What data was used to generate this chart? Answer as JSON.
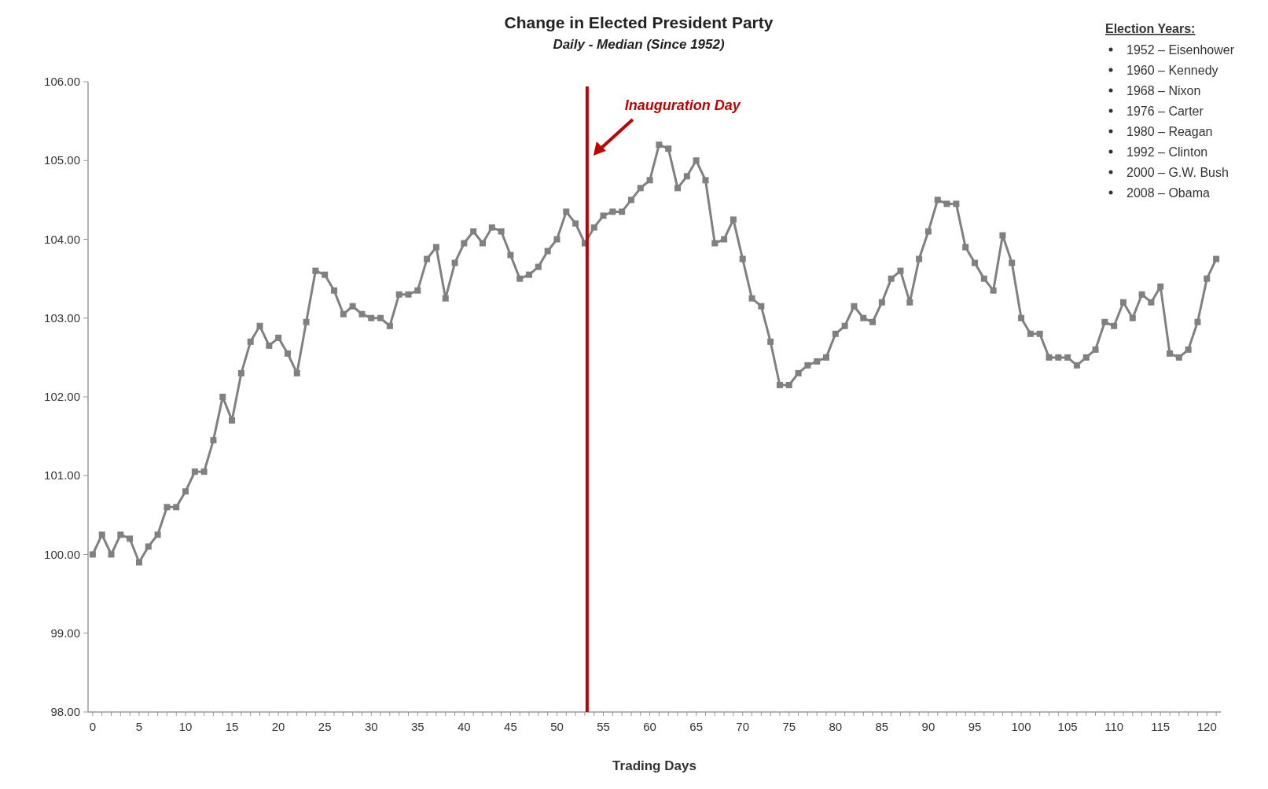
{
  "chart_data": {
    "type": "line",
    "title": "Change in Elected President Party",
    "subtitle": "Daily - Median  (Since 1952)",
    "xlabel": "Trading Days",
    "x": [
      0,
      1,
      2,
      3,
      4,
      5,
      6,
      7,
      8,
      9,
      10,
      11,
      12,
      13,
      14,
      15,
      16,
      17,
      18,
      19,
      20,
      21,
      22,
      23,
      24,
      25,
      26,
      27,
      28,
      29,
      30,
      31,
      32,
      33,
      34,
      35,
      36,
      37,
      38,
      39,
      40,
      41,
      42,
      43,
      44,
      45,
      46,
      47,
      48,
      49,
      50,
      51,
      52,
      53,
      54,
      55,
      56,
      57,
      58,
      59,
      60,
      61,
      62,
      63,
      64,
      65,
      66,
      67,
      68,
      69,
      70,
      71,
      72,
      73,
      74,
      75,
      76,
      77,
      78,
      79,
      80,
      81,
      82,
      83,
      84,
      85,
      86,
      87,
      88,
      89,
      90,
      91,
      92,
      93,
      94,
      95,
      96,
      97,
      98,
      99,
      100,
      101,
      102,
      103,
      104,
      105,
      106,
      107,
      108,
      109,
      110,
      111,
      112,
      113,
      114,
      115,
      116,
      117,
      118,
      119,
      120,
      121
    ],
    "series": [
      {
        "color": "#808080",
        "values": [
          100.0,
          100.25,
          100.0,
          100.25,
          100.2,
          99.9,
          100.1,
          100.25,
          100.6,
          100.6,
          100.8,
          101.05,
          101.05,
          101.45,
          102.0,
          101.7,
          102.3,
          102.7,
          102.9,
          102.65,
          102.75,
          102.55,
          102.3,
          102.95,
          103.6,
          103.55,
          103.35,
          103.05,
          103.15,
          103.05,
          103.0,
          103.0,
          102.9,
          103.3,
          103.3,
          103.35,
          103.75,
          103.9,
          103.25,
          103.7,
          103.95,
          104.1,
          103.95,
          104.15,
          104.1,
          103.8,
          103.5,
          103.55,
          103.65,
          103.85,
          104.0,
          104.35,
          104.2,
          103.95,
          104.15,
          104.3,
          104.35,
          104.35,
          104.5,
          104.65,
          104.75,
          105.2,
          105.15,
          104.65,
          104.8,
          105.0,
          104.75,
          103.95,
          104.0,
          104.25,
          103.75,
          103.25,
          103.15,
          102.7,
          102.15,
          102.15,
          102.3,
          102.4,
          102.45,
          102.5,
          102.8,
          102.9,
          103.15,
          103.0,
          102.95,
          103.2,
          103.5,
          103.6,
          103.2,
          103.75,
          104.1,
          104.5,
          104.45,
          104.45,
          103.9,
          103.7,
          103.5,
          103.35,
          104.05,
          103.7,
          103.0,
          102.8,
          102.8,
          102.5,
          102.5,
          102.5,
          102.4,
          102.5,
          102.6,
          102.95,
          102.9,
          103.2,
          103.0,
          103.3,
          103.2,
          103.4,
          102.55,
          102.5,
          102.6,
          102.95,
          103.5,
          103.75
        ]
      }
    ],
    "marker": "square",
    "line_style": "solid",
    "grid": false,
    "xlim": [
      -0.5,
      121.5
    ],
    "xticks": [
      0,
      {
        "value": 1,
        "label": null
      },
      {
        "value": 2,
        "label": null
      },
      {
        "value": 3,
        "label": null
      },
      {
        "value": 4,
        "label": null
      },
      5,
      {
        "value": 6,
        "label": null
      },
      {
        "value": 7,
        "label": null
      },
      {
        "value": 8,
        "label": null
      },
      {
        "value": 9,
        "label": null
      },
      10,
      {
        "value": 11,
        "label": null
      },
      {
        "value": 12,
        "label": null
      },
      {
        "value": 13,
        "label": null
      },
      {
        "value": 14,
        "label": null
      },
      15,
      {
        "value": 16,
        "label": null
      },
      {
        "value": 17,
        "label": null
      },
      {
        "value": 18,
        "label": null
      },
      {
        "value": 19,
        "label": null
      },
      20,
      {
        "value": 21,
        "label": null
      },
      {
        "value": 22,
        "label": null
      },
      {
        "value": 23,
        "label": null
      },
      {
        "value": 24,
        "label": null
      },
      25,
      {
        "value": 26,
        "label": null
      },
      {
        "value": 27,
        "label": null
      },
      {
        "value": 28,
        "label": null
      },
      {
        "value": 29,
        "label": null
      },
      30,
      {
        "value": 31,
        "label": null
      },
      {
        "value": 32,
        "label": null
      },
      {
        "value": 33,
        "label": null
      },
      {
        "value": 34,
        "label": null
      },
      35,
      {
        "value": 36,
        "label": null
      },
      {
        "value": 37,
        "label": null
      },
      {
        "value": 38,
        "label": null
      },
      {
        "value": 39,
        "label": null
      },
      40,
      {
        "value": 41,
        "label": null
      },
      {
        "value": 42,
        "label": null
      },
      {
        "value": 43,
        "label": null
      },
      {
        "value": 44,
        "label": null
      },
      45,
      {
        "value": 46,
        "label": null
      },
      {
        "value": 47,
        "label": null
      },
      {
        "value": 48,
        "label": null
      },
      {
        "value": 49,
        "label": null
      },
      50,
      {
        "value": 51,
        "label": null
      },
      {
        "value": 52,
        "label": null
      },
      {
        "value": 53,
        "label": null
      },
      {
        "value": 54,
        "label": null
      },
      55,
      {
        "value": 56,
        "label": null
      },
      {
        "value": 57,
        "label": null
      },
      {
        "value": 58,
        "label": null
      },
      {
        "value": 59,
        "label": null
      },
      60,
      {
        "value": 61,
        "label": null
      },
      {
        "value": 62,
        "label": null
      },
      {
        "value": 63,
        "label": null
      },
      {
        "value": 64,
        "label": null
      },
      65,
      {
        "value": 66,
        "label": null
      },
      {
        "value": 67,
        "label": null
      },
      {
        "value": 68,
        "label": null
      },
      {
        "value": 69,
        "label": null
      },
      70,
      {
        "value": 71,
        "label": null
      },
      {
        "value": 72,
        "label": null
      },
      {
        "value": 73,
        "label": null
      },
      {
        "value": 74,
        "label": null
      },
      75,
      {
        "value": 76,
        "label": null
      },
      {
        "value": 77,
        "label": null
      },
      {
        "value": 78,
        "label": null
      },
      {
        "value": 79,
        "label": null
      },
      80,
      {
        "value": 81,
        "label": null
      },
      {
        "value": 82,
        "label": null
      },
      {
        "value": 83,
        "label": null
      },
      {
        "value": 84,
        "label": null
      },
      85,
      {
        "value": 86,
        "label": null
      },
      {
        "value": 87,
        "label": null
      },
      {
        "value": 88,
        "label": null
      },
      {
        "value": 89,
        "label": null
      },
      90,
      {
        "value": 91,
        "label": null
      },
      {
        "value": 92,
        "label": null
      },
      {
        "value": 93,
        "label": null
      },
      {
        "value": 94,
        "label": null
      },
      95,
      {
        "value": 96,
        "label": null
      },
      {
        "value": 97,
        "label": null
      },
      {
        "value": 98,
        "label": null
      },
      {
        "value": 99,
        "label": null
      },
      100,
      {
        "value": 101,
        "label": null
      },
      {
        "value": 102,
        "label": null
      },
      {
        "value": 103,
        "label": null
      },
      {
        "value": 104,
        "label": null
      },
      105,
      {
        "value": 106,
        "label": null
      },
      {
        "value": 107,
        "label": null
      },
      {
        "value": 108,
        "label": null
      },
      {
        "value": 109,
        "label": null
      },
      110,
      {
        "value": 111,
        "label": null
      },
      {
        "value": 112,
        "label": null
      },
      {
        "value": 113,
        "label": null
      },
      {
        "value": 114,
        "label": null
      },
      115,
      {
        "value": 116,
        "label": null
      },
      {
        "value": 117,
        "label": null
      },
      {
        "value": 118,
        "label": null
      },
      {
        "value": 119,
        "label": null
      },
      120,
      {
        "value": 121,
        "label": null
      }
    ],
    "ylim": [
      98,
      106
    ],
    "yticks": [
      {
        "value": 98,
        "label": "98.00"
      },
      {
        "value": 99,
        "label": "99.00"
      },
      {
        "value": 100,
        "label": "100.00"
      },
      {
        "value": 101,
        "label": "101.00"
      },
      {
        "value": 102,
        "label": "102.00"
      },
      {
        "value": 103,
        "label": "103.00"
      },
      {
        "value": 104,
        "label": "104.00"
      },
      {
        "value": 105,
        "label": "105.00"
      },
      {
        "value": 106,
        "label": "106.00"
      }
    ],
    "ref_lines": [
      {
        "axis": "x",
        "value": 53.25,
        "label": "Inauguration Day",
        "color": "#c00000",
        "line_style": "solid"
      }
    ],
    "annotations": [
      "Election Years:",
      "1952 – Eisenhower",
      "1960 – Kennedy",
      "1968 – Nixon",
      "1976 – Carter",
      "1980 – Reagan",
      "1992 – Clinton",
      "2000 – G.W. Bush",
      "2008 – Obama"
    ]
  }
}
